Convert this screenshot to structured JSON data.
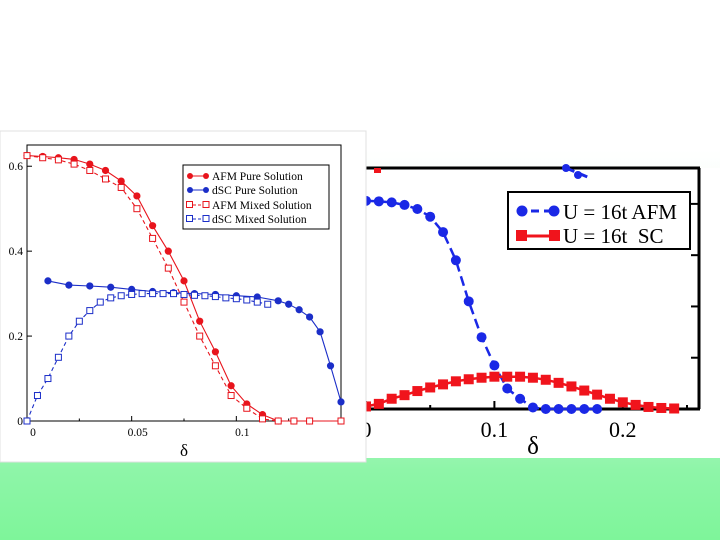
{
  "slide": {
    "background_top": "#ffffff",
    "background_bottom": "#7ef59a"
  },
  "chart_data": [
    {
      "type": "line",
      "title": "",
      "xlabel": "δ",
      "ylabel": "",
      "xlim": [
        0,
        0.15
      ],
      "ylim": [
        0,
        0.65
      ],
      "x_ticks": [
        0,
        0.05,
        0.1
      ],
      "x_tick_labels": [
        "0",
        "0.05",
        "0.1"
      ],
      "y_ticks": [
        0,
        0.2,
        0.4,
        0.6
      ],
      "y_tick_labels": [
        "0",
        "0.2",
        "0.4",
        "0.6"
      ],
      "grid": false,
      "legend_position": "top-right",
      "series": [
        {
          "name": "AFM Pure Solution",
          "color": "#e8141c",
          "marker": "filled-circle",
          "line": "solid",
          "x": [
            0,
            0.0075,
            0.015,
            0.0225,
            0.03,
            0.0375,
            0.045,
            0.0525,
            0.06,
            0.0675,
            0.075,
            0.0825,
            0.09,
            0.0975,
            0.105,
            0.1125,
            0.12,
            0.1275,
            0.135,
            0.15
          ],
          "y": [
            0.625,
            0.623,
            0.62,
            0.616,
            0.605,
            0.59,
            0.565,
            0.53,
            0.46,
            0.4,
            0.33,
            0.235,
            0.163,
            0.083,
            0.04,
            0.015,
            0,
            0,
            0,
            0
          ]
        },
        {
          "name": "dSC Pure Solution",
          "color": "#1b2ec8",
          "marker": "filled-circle",
          "line": "solid",
          "x": [
            0.01,
            0.02,
            0.03,
            0.04,
            0.05,
            0.06,
            0.07,
            0.08,
            0.09,
            0.1,
            0.11,
            0.12,
            0.125,
            0.13,
            0.135,
            0.14,
            0.145,
            0.15
          ],
          "y": [
            0.33,
            0.32,
            0.318,
            0.315,
            0.31,
            0.305,
            0.302,
            0.3,
            0.298,
            0.295,
            0.292,
            0.283,
            0.275,
            0.262,
            0.245,
            0.21,
            0.13,
            0.045
          ]
        },
        {
          "name": "AFM Mixed Solution",
          "color": "#e8141c",
          "marker": "open-square",
          "line": "dashed",
          "x": [
            0,
            0.0075,
            0.015,
            0.0225,
            0.03,
            0.0375,
            0.045,
            0.0525,
            0.06,
            0.0675,
            0.075,
            0.0825,
            0.09,
            0.0975,
            0.105,
            0.1125,
            0.12,
            0.1275,
            0.135,
            0.15
          ],
          "y": [
            0.625,
            0.62,
            0.615,
            0.605,
            0.59,
            0.57,
            0.55,
            0.5,
            0.43,
            0.36,
            0.28,
            0.2,
            0.13,
            0.06,
            0.03,
            0.005,
            0,
            0,
            0,
            0
          ]
        },
        {
          "name": "dSC Mixed Solution",
          "color": "#1b2ec8",
          "marker": "open-square",
          "line": "dashed",
          "x": [
            0,
            0.005,
            0.01,
            0.015,
            0.02,
            0.025,
            0.03,
            0.035,
            0.04,
            0.045,
            0.05,
            0.055,
            0.06,
            0.065,
            0.07,
            0.075,
            0.08,
            0.085,
            0.09,
            0.095,
            0.1,
            0.105,
            0.11,
            0.115
          ],
          "y": [
            0,
            0.06,
            0.1,
            0.15,
            0.2,
            0.235,
            0.26,
            0.28,
            0.29,
            0.295,
            0.298,
            0.3,
            0.3,
            0.3,
            0.3,
            0.298,
            0.296,
            0.295,
            0.293,
            0.29,
            0.288,
            0.285,
            0.28,
            0.275
          ]
        }
      ]
    },
    {
      "type": "line",
      "title": "",
      "xlabel": "δ",
      "ylabel": "",
      "xlim": [
        0,
        0.25
      ],
      "ylim": [
        0,
        0.47
      ],
      "x_ticks": [
        0,
        0.1,
        0.2
      ],
      "x_tick_labels": [
        "0",
        "0.1",
        "0.2"
      ],
      "grid": false,
      "legend_position": "top-right",
      "series": [
        {
          "name": "U = 16t AFM",
          "color": "#1a28e6",
          "marker": "filled-circle",
          "line": "dashed",
          "x": [
            0,
            0.01,
            0.02,
            0.03,
            0.04,
            0.05,
            0.06,
            0.07,
            0.08,
            0.09,
            0.1,
            0.11,
            0.12,
            0.13,
            0.14,
            0.15,
            0.16,
            0.17,
            0.18
          ],
          "y": [
            0.406,
            0.405,
            0.403,
            0.398,
            0.39,
            0.375,
            0.345,
            0.29,
            0.21,
            0.14,
            0.085,
            0.04,
            0.02,
            0.003,
            0,
            0,
            0,
            0,
            0
          ]
        },
        {
          "name": "U = 16t  SC",
          "color": "#f0141c",
          "marker": "filled-square",
          "line": "solid",
          "x": [
            0,
            0.01,
            0.02,
            0.03,
            0.04,
            0.05,
            0.06,
            0.07,
            0.08,
            0.09,
            0.1,
            0.11,
            0.12,
            0.13,
            0.14,
            0.15,
            0.16,
            0.17,
            0.18,
            0.19,
            0.2,
            0.21,
            0.22,
            0.23,
            0.24
          ],
          "y": [
            0.005,
            0.01,
            0.02,
            0.027,
            0.035,
            0.042,
            0.048,
            0.054,
            0.058,
            0.061,
            0.063,
            0.063,
            0.063,
            0.061,
            0.057,
            0.051,
            0.044,
            0.036,
            0.028,
            0.02,
            0.013,
            0.008,
            0.004,
            0.002,
            0.001
          ]
        }
      ]
    }
  ]
}
